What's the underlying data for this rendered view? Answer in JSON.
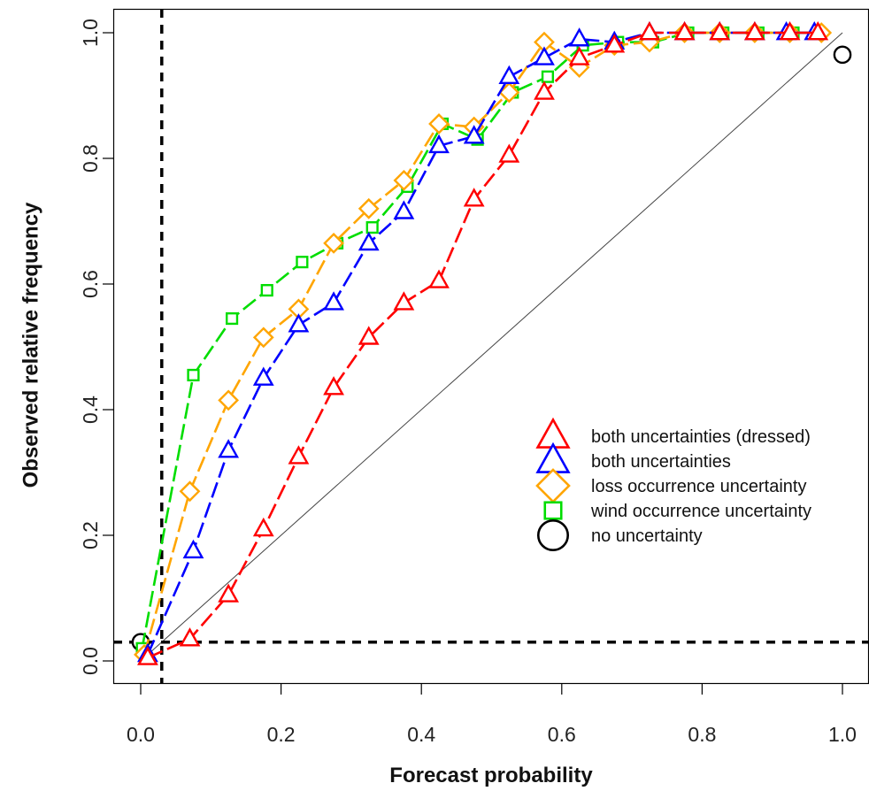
{
  "chart_data": {
    "type": "line",
    "xlabel": "Forecast probability",
    "ylabel": "Observed relative frequency",
    "xlim": [
      0,
      1
    ],
    "ylim": [
      0,
      1
    ],
    "xticks": [
      "0.0",
      "0.2",
      "0.4",
      "0.6",
      "0.8",
      "1.0"
    ],
    "yticks": [
      "0.0",
      "0.2",
      "0.4",
      "0.6",
      "0.8",
      "1.0"
    ],
    "grid": false,
    "legend_position": "right",
    "reference_lines": {
      "diagonal": "perfect reliability line (y = x)",
      "vertical_dashed_x": 0.03,
      "horizontal_dashed_y": 0.03
    },
    "series": [
      {
        "name": "both uncertainties (dressed)",
        "marker": "triangle",
        "color": "#ff0000",
        "x": [
          0.01,
          0.07,
          0.125,
          0.175,
          0.225,
          0.275,
          0.325,
          0.375,
          0.425,
          0.475,
          0.525,
          0.575,
          0.625,
          0.675,
          0.725,
          0.775,
          0.825,
          0.875,
          0.925,
          0.965
        ],
        "y": [
          0.005,
          0.035,
          0.105,
          0.21,
          0.325,
          0.435,
          0.515,
          0.57,
          0.605,
          0.735,
          0.805,
          0.905,
          0.96,
          0.98,
          1.0,
          1.0,
          1.0,
          1.0,
          1.0,
          1.0
        ]
      },
      {
        "name": "both uncertainties",
        "marker": "triangle",
        "color": "#0000ff",
        "x": [
          0.01,
          0.075,
          0.125,
          0.175,
          0.225,
          0.275,
          0.325,
          0.375,
          0.425,
          0.475,
          0.525,
          0.575,
          0.625,
          0.675,
          0.725,
          0.775,
          0.825,
          0.875,
          0.92,
          0.96
        ],
        "y": [
          0.01,
          0.175,
          0.335,
          0.45,
          0.535,
          0.57,
          0.665,
          0.715,
          0.82,
          0.835,
          0.93,
          0.96,
          0.99,
          0.985,
          1.0,
          1.0,
          1.0,
          1.0,
          1.0,
          1.0
        ]
      },
      {
        "name": "loss occurrence uncertainty",
        "marker": "diamond",
        "color": "#ffa500",
        "x": [
          0.005,
          0.07,
          0.125,
          0.175,
          0.225,
          0.275,
          0.325,
          0.375,
          0.425,
          0.475,
          0.525,
          0.575,
          0.625,
          0.675,
          0.725,
          0.775,
          0.825,
          0.875,
          0.925,
          0.97
        ],
        "y": [
          0.01,
          0.27,
          0.415,
          0.515,
          0.56,
          0.665,
          0.72,
          0.765,
          0.855,
          0.85,
          0.905,
          0.985,
          0.945,
          0.98,
          0.985,
          1.0,
          1.0,
          1.0,
          1.0,
          1.0
        ]
      },
      {
        "name": "wind occurrence uncertainty",
        "marker": "square",
        "color": "#00dd00",
        "x": [
          0.002,
          0.075,
          0.13,
          0.18,
          0.23,
          0.28,
          0.33,
          0.38,
          0.43,
          0.48,
          0.53,
          0.58,
          0.63,
          0.68,
          0.73,
          0.78,
          0.83,
          0.88,
          0.93,
          0.965
        ],
        "y": [
          0.02,
          0.455,
          0.545,
          0.59,
          0.635,
          0.665,
          0.69,
          0.755,
          0.855,
          0.83,
          0.905,
          0.93,
          0.98,
          0.985,
          0.985,
          1.0,
          1.0,
          1.0,
          1.0,
          1.0
        ]
      },
      {
        "name": "no uncertainty",
        "marker": "circle",
        "color": "#000000",
        "x": [
          0.0,
          1.0
        ],
        "y": [
          0.03,
          0.965
        ]
      }
    ]
  }
}
